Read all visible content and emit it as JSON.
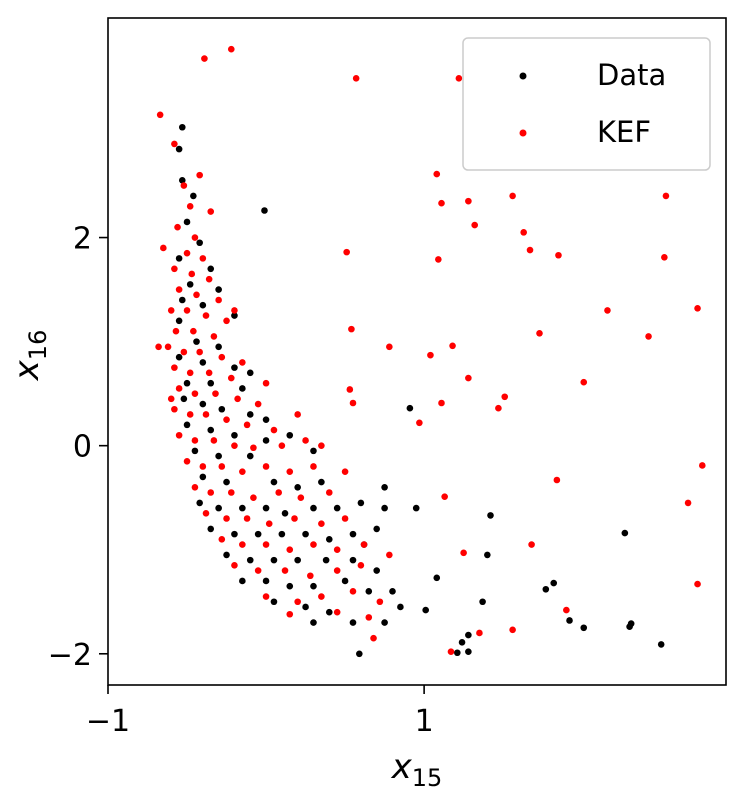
{
  "chart_data": {
    "type": "scatter",
    "title": "",
    "xlabel": "x",
    "xlabel_sub": "15",
    "ylabel": "x",
    "ylabel_sub": "16",
    "xlim": [
      -1,
      2.91
    ],
    "ylim": [
      -2.3,
      4.11
    ],
    "xticks": [
      {
        "value": -1,
        "label": "−1"
      },
      {
        "value": 1,
        "label": "1"
      }
    ],
    "yticks": [
      {
        "value": -2,
        "label": "−2"
      },
      {
        "value": 0,
        "label": "0"
      },
      {
        "value": 2,
        "label": "2"
      }
    ],
    "grid": false,
    "legend_position": "top-right",
    "series": [
      {
        "name": "Data",
        "color": "#000000",
        "points": [
          [
            -0.53,
            3.06
          ],
          [
            -0.01,
            2.26
          ],
          [
            0.91,
            0.36
          ],
          [
            2.27,
            -0.84
          ],
          [
            1.82,
            -1.32
          ],
          [
            1.77,
            -1.38
          ],
          [
            1.92,
            -1.68
          ],
          [
            2.01,
            -1.75
          ],
          [
            2.3,
            -1.74
          ],
          [
            2.31,
            -1.71
          ],
          [
            2.5,
            -1.91
          ],
          [
            1.42,
            -0.67
          ],
          [
            1.4,
            -1.05
          ],
          [
            1.37,
            -1.5
          ],
          [
            1.28,
            -1.82
          ],
          [
            1.24,
            -1.89
          ],
          [
            1.28,
            -1.98
          ],
          [
            1.21,
            -1.99
          ],
          [
            0.59,
            -2.0
          ],
          [
            1.08,
            -1.27
          ],
          [
            1.01,
            -1.58
          ],
          [
            0.95,
            -0.6
          ],
          [
            0.75,
            -0.4
          ],
          [
            -0.55,
            2.85
          ],
          [
            -0.53,
            2.55
          ],
          [
            -0.46,
            2.4
          ],
          [
            -0.5,
            2.15
          ],
          [
            -0.42,
            1.95
          ],
          [
            -0.55,
            1.8
          ],
          [
            -0.35,
            1.7
          ],
          [
            -0.48,
            1.55
          ],
          [
            -0.3,
            1.5
          ],
          [
            -0.53,
            1.4
          ],
          [
            -0.4,
            1.35
          ],
          [
            -0.2,
            1.25
          ],
          [
            -0.55,
            1.2
          ],
          [
            -0.44,
            1.0
          ],
          [
            -0.3,
            0.95
          ],
          [
            -0.55,
            0.85
          ],
          [
            -0.4,
            0.8
          ],
          [
            -0.2,
            0.75
          ],
          [
            -0.1,
            0.7
          ],
          [
            -0.5,
            0.6
          ],
          [
            -0.35,
            0.6
          ],
          [
            -0.15,
            0.55
          ],
          [
            -0.52,
            0.45
          ],
          [
            -0.4,
            0.4
          ],
          [
            -0.28,
            0.35
          ],
          [
            -0.1,
            0.3
          ],
          [
            0.0,
            0.25
          ],
          [
            -0.5,
            0.2
          ],
          [
            -0.35,
            0.15
          ],
          [
            -0.2,
            0.1
          ],
          [
            0.0,
            0.05
          ],
          [
            0.15,
            0.1
          ],
          [
            0.3,
            -0.05
          ],
          [
            -0.45,
            -0.05
          ],
          [
            -0.3,
            -0.1
          ],
          [
            -0.1,
            -0.1
          ],
          [
            0.05,
            -0.35
          ],
          [
            0.2,
            -0.4
          ],
          [
            0.35,
            -0.35
          ],
          [
            -0.4,
            -0.3
          ],
          [
            -0.25,
            -0.35
          ],
          [
            -0.42,
            -0.55
          ],
          [
            -0.3,
            -0.6
          ],
          [
            -0.15,
            -0.6
          ],
          [
            0.0,
            -0.6
          ],
          [
            0.12,
            -0.65
          ],
          [
            0.3,
            -0.6
          ],
          [
            0.45,
            -0.6
          ],
          [
            0.6,
            -0.55
          ],
          [
            -0.35,
            -0.8
          ],
          [
            -0.2,
            -0.85
          ],
          [
            -0.05,
            -0.85
          ],
          [
            0.1,
            -0.85
          ],
          [
            0.25,
            -0.85
          ],
          [
            0.4,
            -0.9
          ],
          [
            0.55,
            -0.85
          ],
          [
            0.7,
            -0.8
          ],
          [
            -0.25,
            -1.05
          ],
          [
            -0.1,
            -1.1
          ],
          [
            0.05,
            -1.1
          ],
          [
            0.2,
            -1.1
          ],
          [
            0.38,
            -1.1
          ],
          [
            0.55,
            -1.1
          ],
          [
            0.7,
            -1.2
          ],
          [
            -0.15,
            -1.3
          ],
          [
            0.0,
            -1.3
          ],
          [
            0.15,
            -1.35
          ],
          [
            0.3,
            -1.35
          ],
          [
            0.5,
            -1.3
          ],
          [
            0.65,
            -1.4
          ],
          [
            0.8,
            -1.4
          ],
          [
            0.05,
            -1.5
          ],
          [
            0.25,
            -1.55
          ],
          [
            0.4,
            -1.6
          ],
          [
            0.55,
            -1.7
          ],
          [
            0.75,
            -1.7
          ],
          [
            0.3,
            -1.7
          ],
          [
            0.85,
            -1.55
          ],
          [
            0.62,
            -0.95
          ],
          [
            0.75,
            -0.6
          ]
        ]
      },
      {
        "name": "KEF",
        "color": "#ff0000",
        "points": [
          [
            -0.67,
            3.18
          ],
          [
            -0.39,
            3.72
          ],
          [
            -0.22,
            3.81
          ],
          [
            0.57,
            3.53
          ],
          [
            1.22,
            3.53
          ],
          [
            1.08,
            2.61
          ],
          [
            1.11,
            2.33
          ],
          [
            1.28,
            2.35
          ],
          [
            1.32,
            2.12
          ],
          [
            1.56,
            2.4
          ],
          [
            1.63,
            2.05
          ],
          [
            1.67,
            1.88
          ],
          [
            1.85,
            1.83
          ],
          [
            2.53,
            2.4
          ],
          [
            2.52,
            1.81
          ],
          [
            2.73,
            1.32
          ],
          [
            2.16,
            1.3
          ],
          [
            2.42,
            1.05
          ],
          [
            1.73,
            1.08
          ],
          [
            1.09,
            1.79
          ],
          [
            0.51,
            1.86
          ],
          [
            0.54,
            1.12
          ],
          [
            0.78,
            0.95
          ],
          [
            1.18,
            0.96
          ],
          [
            1.04,
            0.87
          ],
          [
            1.28,
            0.65
          ],
          [
            2.01,
            0.61
          ],
          [
            1.51,
            0.47
          ],
          [
            1.47,
            0.36
          ],
          [
            1.11,
            0.41
          ],
          [
            0.55,
            0.41
          ],
          [
            0.53,
            0.54
          ],
          [
            0.97,
            0.22
          ],
          [
            2.76,
            -0.19
          ],
          [
            2.67,
            -0.55
          ],
          [
            1.84,
            -0.33
          ],
          [
            1.13,
            -0.49
          ],
          [
            1.68,
            -0.95
          ],
          [
            1.25,
            -1.03
          ],
          [
            2.73,
            -1.33
          ],
          [
            1.9,
            -1.58
          ],
          [
            1.35,
            -1.8
          ],
          [
            1.17,
            -1.98
          ],
          [
            1.56,
            -1.77
          ],
          [
            0.68,
            -1.85
          ],
          [
            -0.58,
            2.9
          ],
          [
            -0.52,
            2.5
          ],
          [
            -0.48,
            2.3
          ],
          [
            -0.56,
            2.1
          ],
          [
            -0.45,
            2.0
          ],
          [
            -0.5,
            1.85
          ],
          [
            -0.4,
            1.8
          ],
          [
            -0.58,
            1.7
          ],
          [
            -0.47,
            1.65
          ],
          [
            -0.36,
            1.6
          ],
          [
            -0.55,
            1.5
          ],
          [
            -0.44,
            1.45
          ],
          [
            -0.3,
            1.4
          ],
          [
            -0.6,
            1.3
          ],
          [
            -0.5,
            1.3
          ],
          [
            -0.38,
            1.25
          ],
          [
            -0.25,
            1.2
          ],
          [
            -0.57,
            1.1
          ],
          [
            -0.46,
            1.1
          ],
          [
            -0.33,
            1.05
          ],
          [
            -0.62,
            0.95
          ],
          [
            -0.52,
            0.9
          ],
          [
            -0.42,
            0.9
          ],
          [
            -0.28,
            0.85
          ],
          [
            -0.15,
            0.8
          ],
          [
            -0.58,
            0.75
          ],
          [
            -0.48,
            0.7
          ],
          [
            -0.36,
            0.7
          ],
          [
            -0.22,
            0.65
          ],
          [
            -0.55,
            0.55
          ],
          [
            -0.45,
            0.5
          ],
          [
            -0.32,
            0.5
          ],
          [
            -0.18,
            0.45
          ],
          [
            -0.05,
            0.4
          ],
          [
            -0.58,
            0.35
          ],
          [
            -0.48,
            0.3
          ],
          [
            -0.38,
            0.3
          ],
          [
            -0.25,
            0.25
          ],
          [
            -0.12,
            0.2
          ],
          [
            0.05,
            0.15
          ],
          [
            -0.55,
            0.1
          ],
          [
            -0.45,
            0.05
          ],
          [
            -0.33,
            0.05
          ],
          [
            -0.2,
            0.0
          ],
          [
            -0.08,
            -0.02
          ],
          [
            0.1,
            0.0
          ],
          [
            0.25,
            0.05
          ],
          [
            -0.5,
            -0.15
          ],
          [
            -0.4,
            -0.2
          ],
          [
            -0.28,
            -0.2
          ],
          [
            -0.15,
            -0.25
          ],
          [
            0.0,
            -0.2
          ],
          [
            0.15,
            -0.25
          ],
          [
            0.3,
            -0.2
          ],
          [
            -0.45,
            -0.4
          ],
          [
            -0.35,
            -0.45
          ],
          [
            -0.22,
            -0.45
          ],
          [
            -0.08,
            -0.5
          ],
          [
            0.08,
            -0.45
          ],
          [
            0.22,
            -0.5
          ],
          [
            0.4,
            -0.45
          ],
          [
            -0.38,
            -0.65
          ],
          [
            -0.25,
            -0.7
          ],
          [
            -0.12,
            -0.7
          ],
          [
            0.02,
            -0.75
          ],
          [
            0.18,
            -0.7
          ],
          [
            0.35,
            -0.75
          ],
          [
            0.5,
            -0.7
          ],
          [
            -0.28,
            -0.9
          ],
          [
            -0.15,
            -0.95
          ],
          [
            0.0,
            -0.95
          ],
          [
            0.15,
            -1.0
          ],
          [
            0.3,
            -0.95
          ],
          [
            0.45,
            -1.0
          ],
          [
            0.62,
            -0.95
          ],
          [
            -0.2,
            -1.15
          ],
          [
            -0.05,
            -1.2
          ],
          [
            0.12,
            -1.2
          ],
          [
            0.28,
            -1.25
          ],
          [
            0.45,
            -1.2
          ],
          [
            0.6,
            -1.15
          ],
          [
            0.78,
            -1.05
          ],
          [
            0.0,
            -1.45
          ],
          [
            0.2,
            -1.5
          ],
          [
            0.35,
            -1.45
          ],
          [
            0.55,
            -1.4
          ],
          [
            0.72,
            -1.5
          ],
          [
            0.15,
            -1.62
          ],
          [
            0.45,
            -1.6
          ],
          [
            0.65,
            -1.65
          ],
          [
            -0.65,
            1.9
          ],
          [
            -0.68,
            0.95
          ],
          [
            -0.6,
            0.45
          ],
          [
            -0.42,
            2.6
          ],
          [
            -0.35,
            2.25
          ],
          [
            -0.2,
            1.3
          ],
          [
            0.0,
            0.6
          ],
          [
            0.2,
            0.3
          ],
          [
            0.35,
            0.0
          ],
          [
            0.5,
            -0.25
          ]
        ]
      }
    ]
  }
}
